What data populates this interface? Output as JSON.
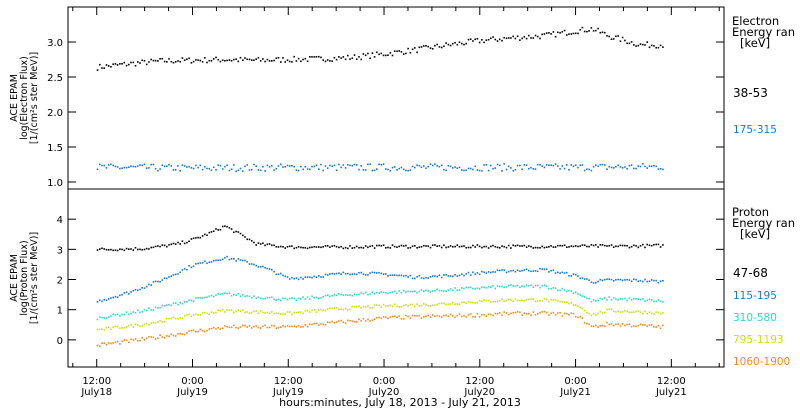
{
  "chart_data": [
    {
      "type": "scatter",
      "panel": "electron",
      "ylabel": [
        "ACE EPAM",
        "log(Electron Flux)",
        "[1/(cm²s ster MeV)]"
      ],
      "ylim": [
        0.9,
        3.5
      ],
      "yticks": [
        1.0,
        1.5,
        2.0,
        2.5,
        3.0
      ],
      "yticklabels": [
        "1.0",
        "1.5",
        "2.0",
        "2.5",
        "3.0"
      ],
      "legend_title": [
        "Electron",
        "Energy ran",
        "[keV]"
      ],
      "legend_position": "right",
      "series": [
        {
          "name": "38-53",
          "color": "#000000",
          "x_hours": [
            0,
            4,
            8,
            12,
            16,
            20,
            24,
            28,
            32,
            36,
            40,
            44,
            48,
            52,
            56,
            60,
            62,
            64,
            68,
            71
          ],
          "y": [
            2.65,
            2.7,
            2.74,
            2.75,
            2.76,
            2.75,
            2.76,
            2.77,
            2.79,
            2.84,
            2.9,
            2.97,
            3.03,
            3.07,
            3.1,
            3.17,
            3.2,
            3.1,
            2.97,
            2.97
          ],
          "spread": 0.04
        },
        {
          "name": "175-315",
          "color": "#1a78d6",
          "x_hours": [
            0,
            12,
            24,
            36,
            48,
            60,
            71
          ],
          "y": [
            1.22,
            1.21,
            1.22,
            1.22,
            1.22,
            1.22,
            1.23
          ],
          "spread": 0.05
        }
      ]
    },
    {
      "type": "scatter",
      "panel": "proton",
      "ylabel": [
        "ACE EPAM",
        "log(Proton Flux)",
        "[1/(cm²s ster MeV)]"
      ],
      "ylim": [
        -0.9,
        5.0
      ],
      "yticks": [
        0,
        1,
        2,
        3,
        4
      ],
      "yticklabels": [
        "0",
        "1",
        "2",
        "3",
        "4"
      ],
      "xticklabels": [
        "12:00",
        "0:00",
        "12:00",
        "0:00",
        "12:00",
        "0:00",
        "12:00"
      ],
      "xsublabels": [
        "July18",
        "July19",
        "July19",
        "July20",
        "July20",
        "July21",
        "July21"
      ],
      "xlabel": "hours:minutes, July 18, 2013 - July 21, 2013",
      "legend_title": [
        "Proton",
        "Energy ran",
        "[keV]"
      ],
      "legend_position": "right",
      "series": [
        {
          "name": "47-68",
          "color": "#000000",
          "x_hours": [
            0,
            6,
            10,
            12,
            14,
            16,
            18,
            20,
            24,
            30,
            36,
            40,
            48,
            54,
            60,
            66,
            71
          ],
          "y": [
            3.02,
            3.05,
            3.2,
            3.35,
            3.55,
            3.8,
            3.5,
            3.2,
            3.1,
            3.1,
            3.12,
            3.12,
            3.12,
            3.12,
            3.13,
            3.13,
            3.15
          ],
          "spread": 0.05
        },
        {
          "name": "115-195",
          "color": "#1a78d6",
          "x_hours": [
            0,
            4,
            8,
            12,
            16,
            18,
            20,
            22,
            24,
            28,
            32,
            36,
            40,
            44,
            48,
            52,
            56,
            60,
            62,
            64,
            68,
            71
          ],
          "y": [
            1.3,
            1.6,
            2.0,
            2.5,
            2.75,
            2.65,
            2.5,
            2.3,
            2.05,
            2.15,
            2.25,
            2.2,
            2.1,
            2.15,
            2.25,
            2.32,
            2.35,
            2.15,
            1.95,
            2.0,
            2.0,
            1.95
          ],
          "spread": 0.05
        },
        {
          "name": "310-580",
          "color": "#2ed8c8",
          "x_hours": [
            0,
            6,
            12,
            16,
            20,
            24,
            30,
            36,
            42,
            48,
            52,
            56,
            60,
            62,
            64,
            68,
            71
          ],
          "y": [
            0.75,
            1.0,
            1.35,
            1.55,
            1.45,
            1.35,
            1.5,
            1.6,
            1.65,
            1.75,
            1.8,
            1.8,
            1.6,
            1.3,
            1.4,
            1.35,
            1.3
          ],
          "spread": 0.05
        },
        {
          "name": "795-1193",
          "color": "#c8e010",
          "x_hours": [
            0,
            6,
            12,
            16,
            20,
            24,
            30,
            36,
            42,
            48,
            52,
            56,
            60,
            62,
            64,
            68,
            71
          ],
          "y": [
            0.35,
            0.55,
            0.85,
            1.0,
            0.95,
            0.9,
            1.05,
            1.15,
            1.2,
            1.3,
            1.35,
            1.35,
            1.2,
            0.85,
            1.0,
            0.95,
            0.9
          ],
          "spread": 0.05
        },
        {
          "name": "1060-1900",
          "color": "#f08c1e",
          "x_hours": [
            0,
            6,
            12,
            16,
            20,
            24,
            30,
            36,
            42,
            48,
            52,
            56,
            60,
            62,
            64,
            68,
            71
          ],
          "y": [
            -0.15,
            0.05,
            0.3,
            0.45,
            0.45,
            0.45,
            0.6,
            0.75,
            0.8,
            0.85,
            0.9,
            0.9,
            0.85,
            0.45,
            0.55,
            0.5,
            0.45
          ],
          "spread": 0.06
        }
      ]
    }
  ],
  "x_axis": {
    "range_hours": [
      -3.6,
      78.6
    ],
    "tick_hours": [
      0,
      12,
      24,
      36,
      48,
      60,
      72
    ]
  }
}
